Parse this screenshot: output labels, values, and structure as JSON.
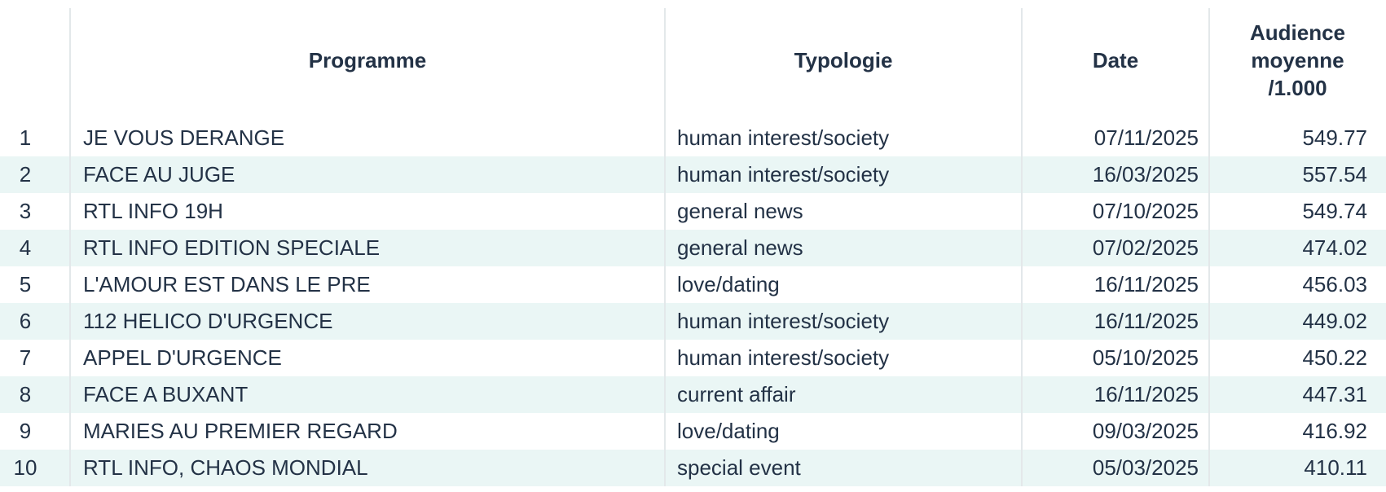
{
  "chart_data": {
    "type": "table",
    "headers": {
      "rank": "",
      "programme": "Programme",
      "typologie": "Typologie",
      "date": "Date",
      "audience": "Audience moyenne /1.000"
    },
    "rows": [
      {
        "rank": "1",
        "programme": "JE VOUS DERANGE",
        "typologie": "human interest/society",
        "date": "07/11/2025",
        "audience": "549.77"
      },
      {
        "rank": "2",
        "programme": "FACE AU JUGE",
        "typologie": "human interest/society",
        "date": "16/03/2025",
        "audience": "557.54"
      },
      {
        "rank": "3",
        "programme": "RTL INFO 19H",
        "typologie": "general news",
        "date": "07/10/2025",
        "audience": "549.74"
      },
      {
        "rank": "4",
        "programme": "RTL INFO EDITION SPECIALE",
        "typologie": "general news",
        "date": "07/02/2025",
        "audience": "474.02"
      },
      {
        "rank": "5",
        "programme": "L'AMOUR EST DANS LE PRE",
        "typologie": "love/dating",
        "date": "16/11/2025",
        "audience": "456.03"
      },
      {
        "rank": "6",
        "programme": "112 HELICO D'URGENCE",
        "typologie": "human interest/society",
        "date": "16/11/2025",
        "audience": "449.02"
      },
      {
        "rank": "7",
        "programme": "APPEL D'URGENCE",
        "typologie": "human interest/society",
        "date": "05/10/2025",
        "audience": "450.22"
      },
      {
        "rank": "8",
        "programme": "FACE A BUXANT",
        "typologie": "current affair",
        "date": "16/11/2025",
        "audience": "447.31"
      },
      {
        "rank": "9",
        "programme": "MARIES AU PREMIER REGARD",
        "typologie": "love/dating",
        "date": "09/03/2025",
        "audience": "416.92"
      },
      {
        "rank": "10",
        "programme": "RTL INFO, CHAOS MONDIAL",
        "typologie": "special event",
        "date": "05/03/2025",
        "audience": "410.11"
      }
    ],
    "layout": {
      "striped_rows": "even",
      "stripe_color": "#eaf6f5",
      "text_color": "#233246",
      "grid_color": "#e3e8ea",
      "grid": "vertical-only"
    }
  }
}
